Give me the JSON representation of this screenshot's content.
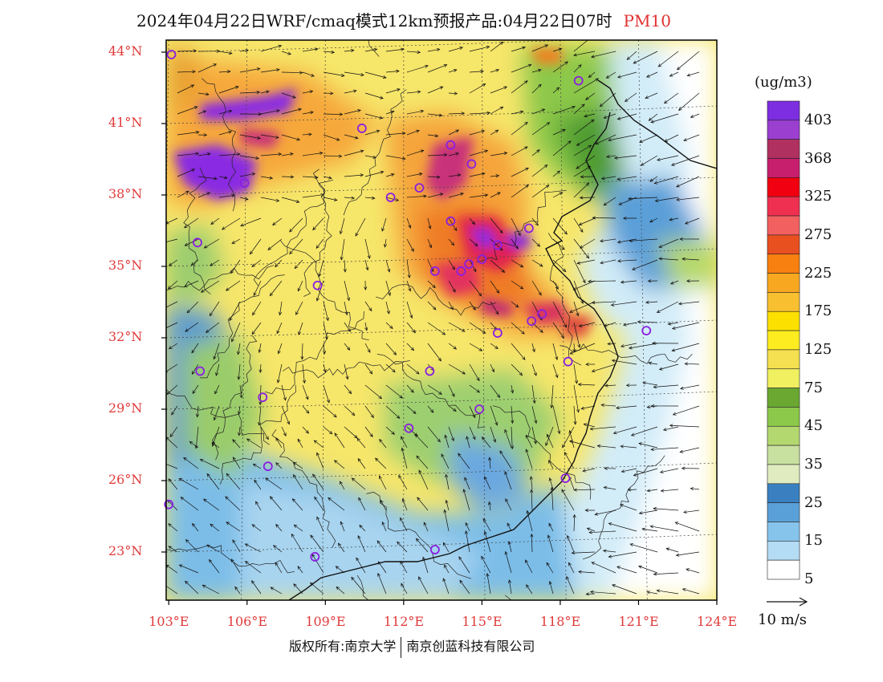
{
  "title": {
    "main": "2024年04月22日WRF/cmaq模式12km预报产品:04月22日07时",
    "variable": "PM10"
  },
  "map": {
    "lat_labels": [
      "44°N",
      "41°N",
      "38°N",
      "35°N",
      "32°N",
      "29°N",
      "26°N",
      "23°N"
    ],
    "lon_labels": [
      "103°E",
      "106°E",
      "109°E",
      "112°E",
      "115°E",
      "118°E",
      "121°E",
      "124°E"
    ]
  },
  "colorbar": {
    "unit": "(ug/m3)",
    "labels": [
      "403",
      "368",
      "325",
      "275",
      "225",
      "175",
      "125",
      "75",
      "45",
      "35",
      "25",
      "15",
      "5"
    ],
    "colors": [
      "#7d2ee0",
      "#9b3fd0",
      "#b03060",
      "#c81e6e",
      "#f00010",
      "#f03050",
      "#f26060",
      "#e85020",
      "#f88010",
      "#f8a820",
      "#f8c030",
      "#fce000",
      "#fdec20",
      "#f4e050",
      "#f0f060",
      "#6aa832",
      "#8cc84a",
      "#b4d870",
      "#c8e0a0",
      "#e0ecc0",
      "#3a80c0",
      "#5aa0d8",
      "#86c4ec",
      "#b4dcf4",
      "#ffffff"
    ]
  },
  "wind": {
    "label": "10 m/s"
  },
  "footer": {
    "left": "版权所有:南京大学",
    "right": "南京创蓝科技有限公司"
  },
  "cities": [
    [
      103.1,
      43.9
    ],
    [
      118.7,
      42.8
    ],
    [
      110.4,
      40.8
    ],
    [
      113.8,
      40.1
    ],
    [
      114.6,
      39.3
    ],
    [
      105.9,
      38.5
    ],
    [
      111.5,
      37.9
    ],
    [
      112.6,
      38.3
    ],
    [
      113.8,
      36.9
    ],
    [
      104.1,
      36.0
    ],
    [
      113.2,
      34.8
    ],
    [
      114.2,
      34.8
    ],
    [
      114.5,
      35.1
    ],
    [
      115.0,
      35.3
    ],
    [
      115.6,
      35.9
    ],
    [
      116.8,
      36.6
    ],
    [
      108.7,
      34.2
    ],
    [
      117.3,
      33.0
    ],
    [
      116.9,
      32.7
    ],
    [
      115.6,
      32.2
    ],
    [
      121.3,
      32.3
    ],
    [
      118.3,
      31.0
    ],
    [
      113.0,
      30.6
    ],
    [
      104.2,
      30.6
    ],
    [
      106.6,
      29.5
    ],
    [
      114.9,
      29.0
    ],
    [
      112.2,
      28.2
    ],
    [
      106.8,
      26.6
    ],
    [
      118.2,
      26.1
    ],
    [
      103.0,
      25.0
    ],
    [
      108.6,
      22.8
    ],
    [
      113.2,
      23.1
    ]
  ]
}
